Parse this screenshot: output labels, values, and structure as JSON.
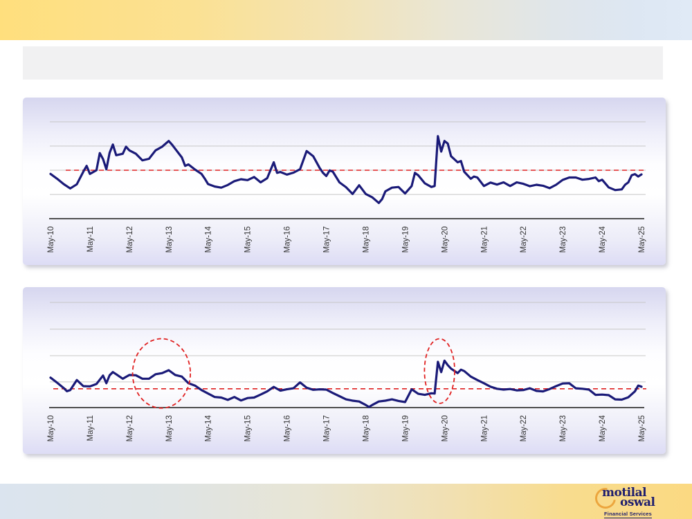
{
  "page": {
    "title_bar": {
      "text": ""
    },
    "footer": {
      "logo": {
        "word1": "motilal",
        "word2": "oswal",
        "tagline": "Financial Services"
      }
    }
  },
  "colors": {
    "series_navy": "#1a1a78",
    "average_red": "#e02020",
    "gridline_gray": "#c6c6c6",
    "axis_black": "#161616",
    "label_gray": "#333333",
    "logo_gold": "#eca63e",
    "logo_navy": "#1e1e6e",
    "header_yellow": "#ffdf7d",
    "header_blue": "#dfe9f5",
    "panel_lavender": "#d9d9f1"
  },
  "chart_data": [
    {
      "type": "line",
      "title": "",
      "x_unit": "months since May-2010",
      "x_range": [
        0,
        180
      ],
      "x_tick_labels": [
        "May-10",
        "May-11",
        "May-12",
        "May-13",
        "May-14",
        "May-15",
        "May-16",
        "May-17",
        "May-18",
        "May-19",
        "May-20",
        "May-21",
        "May-22",
        "May-23",
        "May-24",
        "May-25"
      ],
      "y_axis": {
        "labeled": false,
        "note": "no visible y-axis labels; values are a relative index where the red dashed average line = 100",
        "ylim": [
          80,
          120
        ],
        "gridlines": [
          90,
          100,
          110,
          120
        ]
      },
      "average_line": {
        "value": 100,
        "style": "dashed",
        "color": "#e02020"
      },
      "series": [
        {
          "name": "ratio-index",
          "color": "#1a1a78",
          "points": [
            [
              0,
              98.5
            ],
            [
              2,
              96.5
            ],
            [
              4,
              94.3
            ],
            [
              6,
              92.5
            ],
            [
              8,
              94.2
            ],
            [
              10,
              99.4
            ],
            [
              11,
              101.8
            ],
            [
              12,
              98.5
            ],
            [
              14,
              100.0
            ],
            [
              15,
              107.1
            ],
            [
              16,
              104.6
            ],
            [
              17,
              100.4
            ],
            [
              18,
              107.2
            ],
            [
              19,
              110.6
            ],
            [
              20,
              106.2
            ],
            [
              22,
              106.8
            ],
            [
              23,
              109.7
            ],
            [
              24,
              108.2
            ],
            [
              26,
              106.8
            ],
            [
              28,
              104.1
            ],
            [
              30,
              104.7
            ],
            [
              32,
              108.2
            ],
            [
              34,
              109.7
            ],
            [
              36,
              112.1
            ],
            [
              37,
              110.6
            ],
            [
              38,
              108.8
            ],
            [
              40,
              105.3
            ],
            [
              41,
              101.8
            ],
            [
              42,
              102.4
            ],
            [
              44,
              100.3
            ],
            [
              46,
              98.5
            ],
            [
              47,
              96.5
            ],
            [
              48,
              94.3
            ],
            [
              50,
              93.3
            ],
            [
              52,
              92.8
            ],
            [
              54,
              93.9
            ],
            [
              56,
              95.5
            ],
            [
              58,
              96.3
            ],
            [
              60,
              95.9
            ],
            [
              62,
              97.2
            ],
            [
              64,
              95.0
            ],
            [
              66,
              96.7
            ],
            [
              68,
              103.3
            ],
            [
              69,
              98.9
            ],
            [
              70,
              99.3
            ],
            [
              72,
              98.2
            ],
            [
              74,
              99.0
            ],
            [
              76,
              100.4
            ],
            [
              78,
              107.9
            ],
            [
              80,
              105.8
            ],
            [
              82,
              100.9
            ],
            [
              83,
              98.9
            ],
            [
              84,
              97.6
            ],
            [
              85,
              99.9
            ],
            [
              86,
              99.4
            ],
            [
              88,
              95.0
            ],
            [
              90,
              93.0
            ],
            [
              92,
              90.2
            ],
            [
              94,
              93.8
            ],
            [
              96,
              90.2
            ],
            [
              98,
              88.8
            ],
            [
              100,
              86.5
            ],
            [
              101,
              88.1
            ],
            [
              102,
              91.3
            ],
            [
              104,
              92.8
            ],
            [
              106,
              93.1
            ],
            [
              108,
              90.4
            ],
            [
              110,
              93.5
            ],
            [
              111,
              98.9
            ],
            [
              112,
              97.9
            ],
            [
              114,
              94.6
            ],
            [
              116,
              93.1
            ],
            [
              117,
              93.5
            ],
            [
              118,
              114.1
            ],
            [
              119,
              107.7
            ],
            [
              120,
              112.1
            ],
            [
              121,
              111.0
            ],
            [
              122,
              105.8
            ],
            [
              124,
              103.3
            ],
            [
              125,
              103.8
            ],
            [
              126,
              99.4
            ],
            [
              128,
              96.5
            ],
            [
              129,
              97.4
            ],
            [
              130,
              97.0
            ],
            [
              132,
              93.5
            ],
            [
              134,
              94.9
            ],
            [
              136,
              94.1
            ],
            [
              138,
              95.0
            ],
            [
              140,
              93.5
            ],
            [
              142,
              95.0
            ],
            [
              144,
              94.4
            ],
            [
              146,
              93.4
            ],
            [
              148,
              94.0
            ],
            [
              150,
              93.6
            ],
            [
              152,
              92.6
            ],
            [
              154,
              94.0
            ],
            [
              156,
              96.0
            ],
            [
              158,
              97.0
            ],
            [
              160,
              97.0
            ],
            [
              162,
              96.1
            ],
            [
              164,
              96.4
            ],
            [
              166,
              97.0
            ],
            [
              167,
              95.5
            ],
            [
              168,
              96.1
            ],
            [
              170,
              92.9
            ],
            [
              172,
              91.8
            ],
            [
              174,
              92.1
            ],
            [
              175,
              94.0
            ],
            [
              176,
              95.0
            ],
            [
              177,
              97.9
            ],
            [
              178,
              98.4
            ],
            [
              179,
              97.4
            ],
            [
              180,
              98.3
            ]
          ]
        }
      ]
    },
    {
      "type": "line",
      "title": "",
      "x_unit": "months since May-2010",
      "x_range": [
        0,
        180
      ],
      "x_tick_labels": [
        "May-10",
        "May-11",
        "May-12",
        "May-13",
        "May-14",
        "May-15",
        "May-16",
        "May-17",
        "May-18",
        "May-19",
        "May-20",
        "May-21",
        "May-22",
        "May-23",
        "May-24",
        "May-25"
      ],
      "y_axis": {
        "labeled": false,
        "note": "no visible y-axis labels; values are a relative index where the red dashed average line = 100",
        "ylim": [
          92.9,
          132.6
        ],
        "gridlines": [
          102.6,
          112.5,
          122.5,
          132.6
        ]
      },
      "average_line": {
        "value": 100,
        "style": "dashed",
        "color": "#e02020"
      },
      "annotations": {
        "ellipses": [
          {
            "cx_month": 33.8,
            "cy_value": 105.8,
            "rx_months": 8.8,
            "ry_value": 13.1
          },
          {
            "cx_month": 118.5,
            "cy_value": 106.7,
            "rx_months": 4.6,
            "ry_value": 12.2
          }
        ]
      },
      "series": [
        {
          "name": "ratio-index",
          "color": "#1a1a78",
          "points": [
            [
              0,
              104.2
            ],
            [
              2,
              102.3
            ],
            [
              4,
              100.3
            ],
            [
              5,
              99.1
            ],
            [
              6,
              99.5
            ],
            [
              8,
              103.3
            ],
            [
              10,
              101.0
            ],
            [
              12,
              100.9
            ],
            [
              14,
              101.8
            ],
            [
              16,
              105.0
            ],
            [
              17,
              102.1
            ],
            [
              18,
              105.1
            ],
            [
              19,
              106.3
            ],
            [
              20,
              105.5
            ],
            [
              22,
              103.8
            ],
            [
              24,
              105.2
            ],
            [
              26,
              105.1
            ],
            [
              28,
              103.8
            ],
            [
              30,
              103.8
            ],
            [
              32,
              105.5
            ],
            [
              34,
              105.9
            ],
            [
              36,
              107.0
            ],
            [
              38,
              105.2
            ],
            [
              40,
              104.6
            ],
            [
              42,
              102.1
            ],
            [
              44,
              101.2
            ],
            [
              46,
              99.5
            ],
            [
              48,
              98.2
            ],
            [
              50,
              96.9
            ],
            [
              52,
              96.7
            ],
            [
              54,
              95.8
            ],
            [
              56,
              96.9
            ],
            [
              58,
              95.6
            ],
            [
              60,
              96.5
            ],
            [
              62,
              96.7
            ],
            [
              64,
              97.8
            ],
            [
              66,
              99.0
            ],
            [
              68,
              100.7
            ],
            [
              70,
              99.3
            ],
            [
              72,
              99.8
            ],
            [
              74,
              100.2
            ],
            [
              76,
              102.4
            ],
            [
              78,
              100.4
            ],
            [
              80,
              99.6
            ],
            [
              82,
              99.8
            ],
            [
              84,
              99.7
            ],
            [
              86,
              98.4
            ],
            [
              88,
              97.2
            ],
            [
              90,
              96.0
            ],
            [
              92,
              95.5
            ],
            [
              94,
              95.2
            ],
            [
              96,
              93.9
            ],
            [
              97,
              93.1
            ],
            [
              98,
              93.9
            ],
            [
              100,
              95.2
            ],
            [
              102,
              95.5
            ],
            [
              104,
              96.0
            ],
            [
              106,
              95.4
            ],
            [
              108,
              95.0
            ],
            [
              110,
              99.8
            ],
            [
              112,
              98.1
            ],
            [
              114,
              97.7
            ],
            [
              116,
              98.3
            ],
            [
              117,
              98.2
            ],
            [
              118,
              110.2
            ],
            [
              119,
              106.3
            ],
            [
              120,
              110.6
            ],
            [
              121,
              108.9
            ],
            [
              122,
              107.6
            ],
            [
              124,
              105.9
            ],
            [
              125,
              107.2
            ],
            [
              126,
              106.7
            ],
            [
              128,
              104.6
            ],
            [
              130,
              103.3
            ],
            [
              132,
              102.1
            ],
            [
              134,
              100.8
            ],
            [
              136,
              100.0
            ],
            [
              138,
              99.7
            ],
            [
              140,
              99.9
            ],
            [
              142,
              99.4
            ],
            [
              144,
              99.5
            ],
            [
              146,
              100.2
            ],
            [
              148,
              99.2
            ],
            [
              150,
              99.0
            ],
            [
              152,
              99.9
            ],
            [
              154,
              101.0
            ],
            [
              156,
              102.0
            ],
            [
              158,
              102.1
            ],
            [
              160,
              100.2
            ],
            [
              162,
              100.0
            ],
            [
              164,
              99.7
            ],
            [
              166,
              97.7
            ],
            [
              168,
              97.8
            ],
            [
              170,
              97.6
            ],
            [
              172,
              96.0
            ],
            [
              174,
              95.9
            ],
            [
              176,
              96.8
            ],
            [
              178,
              99.0
            ],
            [
              179,
              101.2
            ],
            [
              180,
              100.8
            ]
          ]
        }
      ]
    }
  ]
}
